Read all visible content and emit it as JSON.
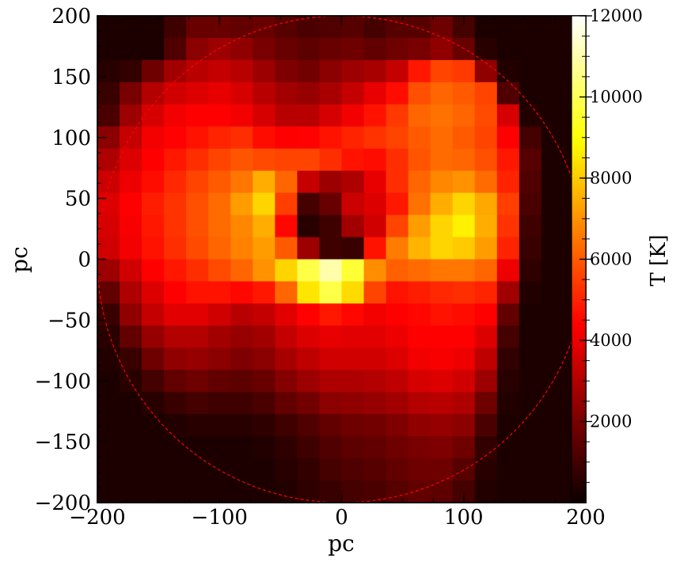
{
  "chart_data": {
    "type": "heatmap",
    "title": "",
    "xlabel": "pc",
    "ylabel": "pc",
    "xlim": [
      -200,
      200
    ],
    "ylim": [
      -200,
      200
    ],
    "xticks": [
      -200,
      -100,
      0,
      100,
      200
    ],
    "xtick_labels": [
      "−200",
      "−100",
      "0",
      "100",
      "200"
    ],
    "yticks": [
      -200,
      -150,
      -100,
      -50,
      0,
      50,
      100,
      150,
      200
    ],
    "ytick_labels": [
      "−200",
      "−150",
      "−100",
      "−50",
      "0",
      "50",
      "100",
      "150",
      "200"
    ],
    "colorbar": {
      "label": "T [K]",
      "colormap": "hot",
      "range": [
        0,
        12000
      ],
      "ticks": [
        2000,
        4000,
        6000,
        8000,
        10000,
        12000
      ],
      "tick_labels": [
        "2000",
        "4000",
        "6000",
        "8000",
        "10000",
        "12000"
      ]
    },
    "circle": {
      "center": [
        0,
        0
      ],
      "radius": 200,
      "color": "#ff0000",
      "style": "dashed"
    },
    "grid": false,
    "cell_size_pc": 18.18,
    "description_of_field": "approximate temperature in K sampled at cell centers, rows from top (y=200) to bottom (y=-200), columns from left (x=-200) to right (x=200)",
    "values": [
      [
        300,
        300,
        300,
        900,
        1600,
        1600,
        1500,
        1600,
        1300,
        1100,
        1200,
        1300,
        1000,
        1300,
        1300,
        1700,
        1000,
        300,
        300,
        300,
        300,
        300
      ],
      [
        300,
        300,
        300,
        1200,
        2200,
        2500,
        2300,
        1900,
        1600,
        1400,
        1600,
        1700,
        1500,
        1700,
        1900,
        2300,
        1600,
        500,
        300,
        300,
        300,
        300
      ],
      [
        500,
        700,
        1700,
        2600,
        3000,
        3200,
        3000,
        2500,
        2000,
        1800,
        2200,
        2500,
        2700,
        3200,
        4800,
        5600,
        5400,
        2300,
        400,
        300,
        300,
        300
      ],
      [
        800,
        1900,
        2900,
        3400,
        3600,
        3800,
        3500,
        3000,
        2600,
        2400,
        2700,
        3200,
        3800,
        4600,
        5800,
        6200,
        6000,
        5600,
        1200,
        300,
        300,
        300
      ],
      [
        1100,
        2500,
        3500,
        4000,
        4200,
        4300,
        4000,
        3500,
        3000,
        3000,
        3500,
        4000,
        4700,
        5400,
        6200,
        6400,
        6200,
        5700,
        3500,
        400,
        300,
        300
      ],
      [
        2200,
        3200,
        4000,
        4400,
        4700,
        5000,
        5200,
        4600,
        4200,
        4400,
        4700,
        5000,
        5300,
        5600,
        6000,
        6300,
        6000,
        5600,
        4300,
        1000,
        300,
        300
      ],
      [
        2800,
        3600,
        4300,
        4800,
        5200,
        5600,
        5900,
        5700,
        5600,
        5600,
        5200,
        4700,
        4600,
        5200,
        5900,
        6300,
        6200,
        5800,
        4800,
        1300,
        300,
        300
      ],
      [
        3300,
        3900,
        4600,
        5100,
        5600,
        6000,
        6500,
        7500,
        6200,
        3200,
        2500,
        2800,
        3800,
        5200,
        6200,
        6800,
        7000,
        6300,
        5000,
        1200,
        300,
        300
      ],
      [
        3600,
        4200,
        4900,
        5300,
        5800,
        6300,
        7200,
        8200,
        5500,
        1000,
        1600,
        3300,
        3600,
        4800,
        6400,
        7500,
        8200,
        7400,
        5500,
        1100,
        300,
        300
      ],
      [
        3500,
        4100,
        4800,
        5300,
        5800,
        6300,
        6800,
        7500,
        4500,
        500,
        900,
        2600,
        3400,
        5600,
        7200,
        8200,
        8700,
        7500,
        5300,
        900,
        300,
        300
      ],
      [
        3400,
        4000,
        4700,
        5200,
        5700,
        6200,
        6700,
        7200,
        6000,
        2500,
        900,
        800,
        4700,
        6600,
        7600,
        8200,
        8000,
        7200,
        5000,
        800,
        300,
        300
      ],
      [
        2500,
        3400,
        4200,
        4800,
        5200,
        5700,
        6200,
        7000,
        8200,
        9800,
        11000,
        9600,
        6900,
        6100,
        6300,
        6500,
        6500,
        6200,
        3900,
        600,
        300,
        300
      ],
      [
        1500,
        2800,
        3600,
        4300,
        4700,
        4700,
        4500,
        4800,
        6200,
        8500,
        9800,
        8300,
        5600,
        4700,
        4900,
        5100,
        5200,
        5000,
        2600,
        400,
        300,
        300
      ],
      [
        800,
        2300,
        3200,
        3700,
        3700,
        3400,
        3000,
        3200,
        3700,
        4400,
        4800,
        4500,
        4000,
        4200,
        4500,
        4700,
        4600,
        4200,
        1500,
        300,
        300,
        300
      ],
      [
        500,
        1500,
        2400,
        2900,
        2900,
        2600,
        2400,
        2600,
        3200,
        3600,
        3800,
        3700,
        3700,
        3900,
        4200,
        4300,
        4200,
        3600,
        1000,
        300,
        300,
        300
      ],
      [
        400,
        800,
        1700,
        2300,
        2400,
        2200,
        2000,
        2200,
        2700,
        3100,
        3400,
        3400,
        3400,
        3600,
        4000,
        4100,
        3900,
        3100,
        700,
        300,
        300,
        300
      ],
      [
        300,
        500,
        1000,
        1500,
        1700,
        1500,
        1400,
        1600,
        2100,
        2500,
        2800,
        2800,
        2900,
        3100,
        3500,
        3600,
        3400,
        2500,
        500,
        300,
        300,
        300
      ],
      [
        300,
        300,
        500,
        800,
        1000,
        900,
        900,
        1100,
        1500,
        1800,
        2200,
        2300,
        2400,
        2600,
        2900,
        3000,
        2800,
        1700,
        400,
        300,
        300,
        300
      ],
      [
        300,
        300,
        300,
        400,
        500,
        500,
        500,
        600,
        900,
        1200,
        1500,
        1700,
        1800,
        2000,
        2300,
        2400,
        2200,
        1100,
        300,
        300,
        300,
        300
      ],
      [
        300,
        300,
        300,
        300,
        300,
        300,
        300,
        400,
        600,
        900,
        1200,
        1400,
        1500,
        1700,
        1900,
        2000,
        1700,
        700,
        300,
        300,
        300,
        300
      ],
      [
        300,
        300,
        300,
        300,
        300,
        300,
        300,
        300,
        500,
        700,
        1000,
        1200,
        1300,
        1500,
        1700,
        1700,
        1300,
        500,
        300,
        300,
        300,
        300
      ],
      [
        300,
        300,
        300,
        300,
        300,
        300,
        300,
        300,
        400,
        600,
        800,
        1000,
        1100,
        1300,
        1500,
        1400,
        1000,
        400,
        300,
        300,
        300,
        300
      ]
    ]
  }
}
